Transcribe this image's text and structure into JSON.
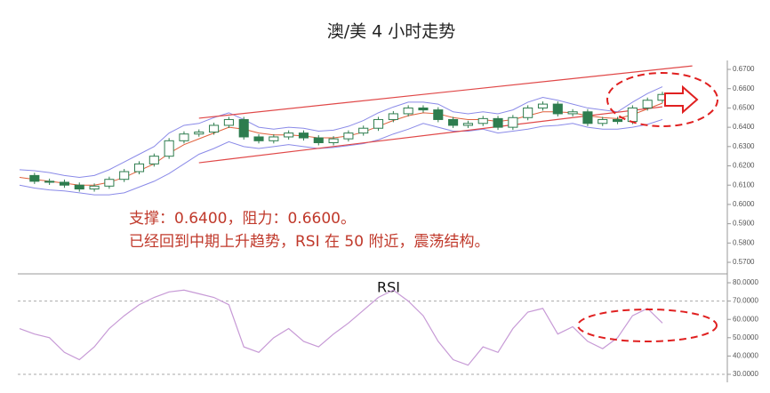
{
  "chart_data": [
    {
      "type": "candlestick",
      "title": "澳/美 4 小时走势",
      "annotations": [
        "支撑：0.6400，阻力：0.6600。",
        "已经回到中期上升趋势，RSI 在 50 附近，震荡结构。"
      ],
      "color_up": "#ffffff",
      "color_down": "#2e7d4f",
      "values": [
        0.615,
        0.612,
        0.6115,
        0.61,
        0.608,
        0.6095,
        0.613,
        0.617,
        0.621,
        0.625,
        0.633,
        0.6365,
        0.6375,
        0.641,
        0.644,
        0.635,
        0.633,
        0.635,
        0.637,
        0.6345,
        0.632,
        0.634,
        0.637,
        0.6395,
        0.644,
        0.647,
        0.65,
        0.649,
        0.644,
        0.641,
        0.642,
        0.6445,
        0.64,
        0.645,
        0.65,
        0.652,
        0.647,
        0.648,
        0.642,
        0.644,
        0.643,
        0.65,
        0.654,
        0.657
      ],
      "bands": [
        {
          "color": "#8a8ae8",
          "values": [
            0.618,
            0.6175,
            0.6165,
            0.615,
            0.614,
            0.615,
            0.618,
            0.622,
            0.626,
            0.63,
            0.637,
            0.641,
            0.642,
            0.645,
            0.6475,
            0.644,
            0.64,
            0.639,
            0.64,
            0.6395,
            0.638,
            0.6385,
            0.6405,
            0.6435,
            0.6475,
            0.6505,
            0.653,
            0.653,
            0.652,
            0.648,
            0.647,
            0.648,
            0.647,
            0.649,
            0.653,
            0.6555,
            0.654,
            0.652,
            0.65,
            0.649,
            0.648,
            0.653,
            0.6575,
            0.661
          ]
        },
        {
          "color": "#e0603c",
          "values": [
            0.614,
            0.613,
            0.612,
            0.611,
            0.61,
            0.61,
            0.6115,
            0.614,
            0.6175,
            0.621,
            0.6265,
            0.631,
            0.634,
            0.637,
            0.64,
            0.639,
            0.637,
            0.636,
            0.636,
            0.6355,
            0.6345,
            0.6345,
            0.6355,
            0.6375,
            0.6405,
            0.6435,
            0.646,
            0.6475,
            0.647,
            0.645,
            0.644,
            0.644,
            0.643,
            0.644,
            0.646,
            0.648,
            0.648,
            0.6475,
            0.646,
            0.645,
            0.6445,
            0.6465,
            0.6495,
            0.6525
          ]
        },
        {
          "color": "#8a8ae8",
          "values": [
            0.61,
            0.6085,
            0.6075,
            0.607,
            0.606,
            0.605,
            0.605,
            0.606,
            0.609,
            0.612,
            0.616,
            0.621,
            0.626,
            0.629,
            0.6325,
            0.63,
            0.629,
            0.63,
            0.631,
            0.63,
            0.629,
            0.6295,
            0.6305,
            0.6315,
            0.6335,
            0.6365,
            0.639,
            0.642,
            0.64,
            0.638,
            0.638,
            0.639,
            0.637,
            0.638,
            0.639,
            0.6405,
            0.641,
            0.642,
            0.64,
            0.639,
            0.639,
            0.64,
            0.6415,
            0.644
          ]
        }
      ],
      "trendlines": [
        {
          "x": [
            12,
            45
          ],
          "values": [
            0.6447,
            0.6718
          ],
          "color": "#e04848"
        },
        {
          "x": [
            12,
            43
          ],
          "values": [
            0.6216,
            0.6506
          ],
          "color": "#e04848"
        }
      ],
      "ylim": [
        0.5654,
        0.6737
      ],
      "yticks": [
        {
          "value": 0.57,
          "label": "0.5700"
        },
        {
          "value": 0.58,
          "label": "0.5800"
        },
        {
          "value": 0.59,
          "label": "0.5900"
        },
        {
          "value": 0.6,
          "label": "0.6000"
        },
        {
          "value": 0.61,
          "label": "0.6100"
        },
        {
          "value": 0.62,
          "label": "0.6200"
        },
        {
          "value": 0.63,
          "label": "0.6300"
        },
        {
          "value": 0.64,
          "label": "0.6400"
        },
        {
          "value": 0.65,
          "label": "0.6500"
        },
        {
          "value": 0.66,
          "label": "0.6600"
        },
        {
          "value": 0.67,
          "label": "0.6700"
        }
      ]
    },
    {
      "type": "line",
      "title": "RSI",
      "color": "#c79ad6",
      "values": [
        55,
        52,
        50,
        42,
        38,
        45,
        55,
        62,
        68,
        72,
        75,
        76,
        74,
        72,
        68,
        45,
        42,
        50,
        55,
        48,
        45,
        52,
        58,
        65,
        72,
        76,
        70,
        62,
        48,
        38,
        35,
        45,
        42,
        55,
        64,
        66,
        52,
        56,
        48,
        44,
        50,
        62,
        66,
        58
      ],
      "reference_lines": [
        70,
        30
      ],
      "ylim": [
        26.6,
        83.9
      ],
      "yticks": [
        {
          "value": 30,
          "label": "30.0000"
        },
        {
          "value": 40,
          "label": "40.0000"
        },
        {
          "value": 50,
          "label": "50.0000"
        },
        {
          "value": 60,
          "label": "60.0000"
        },
        {
          "value": 70,
          "label": "70.0000"
        },
        {
          "value": 80,
          "label": "80.0000"
        }
      ]
    }
  ]
}
